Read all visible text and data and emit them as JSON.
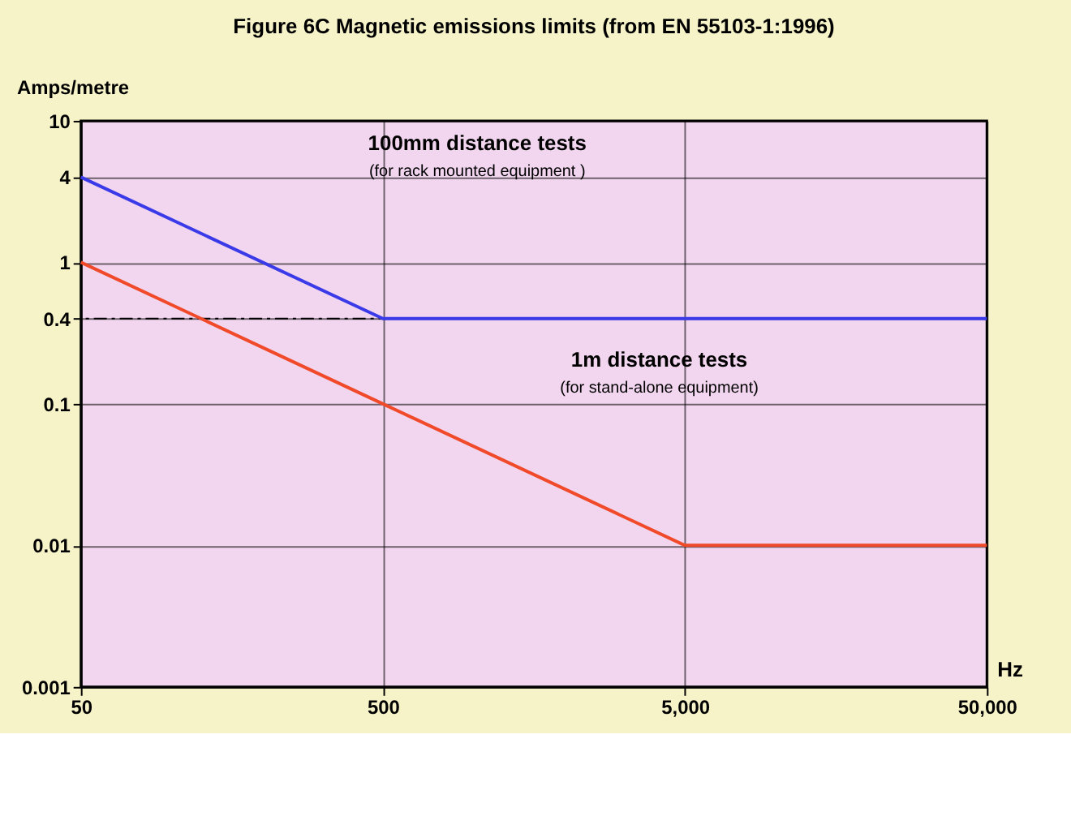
{
  "chart_data": {
    "type": "line",
    "title": "Figure 6C    Magnetic emissions limits (from EN 55103-1:1996)",
    "ylabel": "Amps/metre",
    "xlabel": "Hz",
    "x": [
      50,
      500,
      5000,
      50000
    ],
    "series": [
      {
        "color": "#3a3ae8",
        "values": [
          4,
          0.4,
          0.4,
          0.4
        ]
      },
      {
        "color": "#f04a2a",
        "values": [
          1,
          0.1,
          0.01,
          0.01
        ]
      }
    ],
    "log": "xy",
    "xlim": [
      50,
      50000
    ],
    "ylim": [
      0.001,
      10
    ],
    "xticks": [
      50,
      500,
      {
        "value": 5000,
        "label": "5,000"
      },
      {
        "value": 50000,
        "label": "50,000"
      }
    ],
    "yticks": [
      0.001,
      0.01,
      0.1,
      0.4,
      1,
      4,
      10
    ],
    "grid": true,
    "marker": "none",
    "line_style": "solid",
    "ref_lines": [
      {
        "axis": "y",
        "value": 0.4,
        "label": null,
        "color": "#000000",
        "line_style": "dashed"
      }
    ],
    "annotations": [
      "100mm distance tests\n(for rack mounted equipment )",
      "1m distance tests\n(for stand-alone equipment)"
    ]
  }
}
